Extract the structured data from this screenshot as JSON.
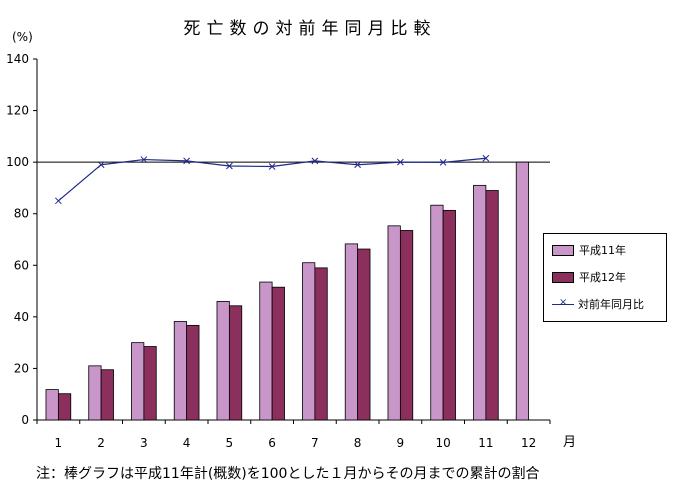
{
  "chart_data": {
    "type": "bar",
    "title": "死亡数の対前年同月比較",
    "ylabel": "(%)",
    "xlabel": "月",
    "ylim": [
      0,
      140
    ],
    "yticks": [
      0,
      20,
      40,
      60,
      80,
      100,
      120,
      140
    ],
    "categories": [
      "1",
      "2",
      "3",
      "4",
      "5",
      "6",
      "7",
      "8",
      "9",
      "10",
      "11",
      "12"
    ],
    "series": [
      {
        "name": "平成11年",
        "kind": "bar",
        "color": "#c896c8",
        "values": [
          11.8,
          21.0,
          30.0,
          38.2,
          46.0,
          53.5,
          61.0,
          68.3,
          75.3,
          83.3,
          91.0,
          100.0
        ]
      },
      {
        "name": "平成12年",
        "kind": "bar",
        "color": "#8b2f5c",
        "values": [
          10.2,
          19.5,
          28.5,
          36.7,
          44.3,
          51.5,
          59.0,
          66.3,
          73.5,
          81.3,
          89.0,
          null
        ]
      },
      {
        "name": "対前年同月比",
        "kind": "line",
        "color": "#1f2a8a",
        "values": [
          85.0,
          99.0,
          101.0,
          100.5,
          98.5,
          98.3,
          100.5,
          99.0,
          100.0,
          99.9,
          101.5,
          null
        ]
      }
    ],
    "reference_line": 100,
    "legend": "right"
  },
  "note": "注：棒グラフは平成11年計(概数)を100とした１月からその月までの累計の割合"
}
